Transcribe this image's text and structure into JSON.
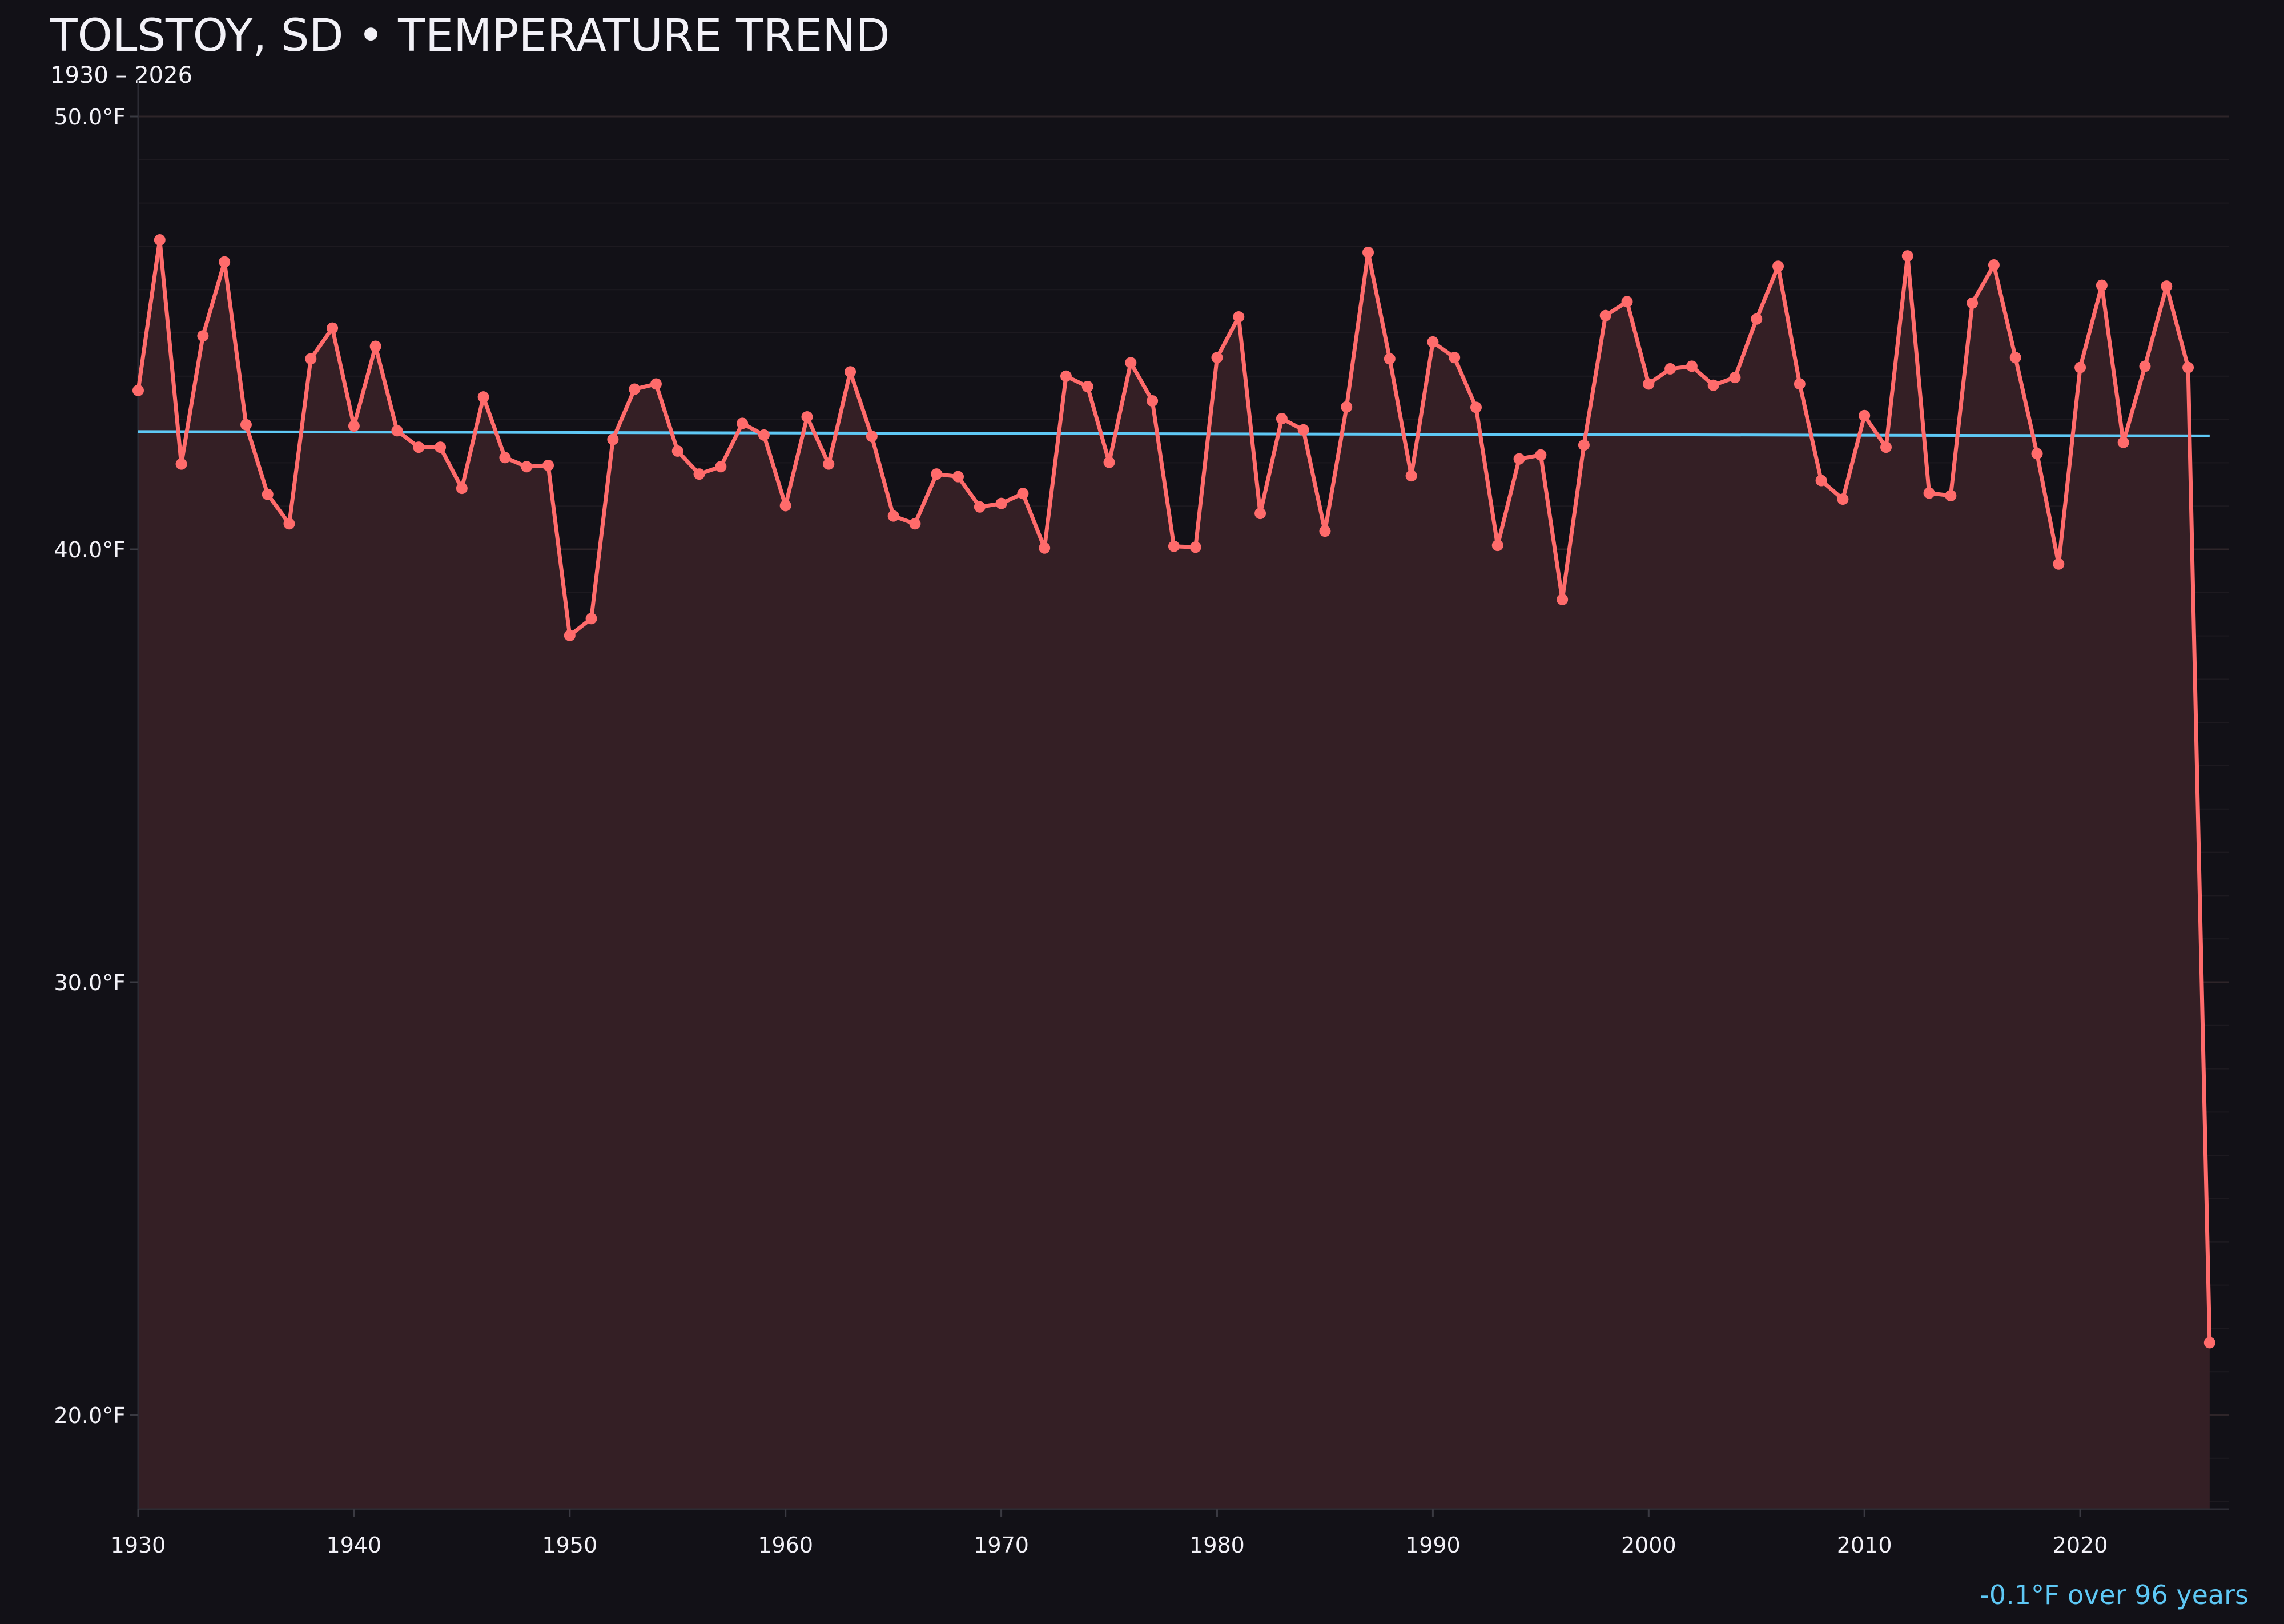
{
  "header": {
    "title": "TOLSTOY, SD • TEMPERATURE TREND",
    "subtitle": "1930 – 2026"
  },
  "footer": {
    "trend_summary": "-0.1°F over 96 years"
  },
  "colors": {
    "background": "#121117",
    "series_line": "#ff6b6b",
    "area_fill": "#341f25",
    "trend_line": "#5ec8f5",
    "text": "#f2f1f7",
    "grid": "#2a2329"
  },
  "chart_data": {
    "type": "line",
    "title": "TOLSTOY, SD • TEMPERATURE TREND",
    "subtitle": "1930 – 2026",
    "xlabel": "",
    "ylabel": "",
    "xlim": [
      1930,
      2027
    ],
    "ylim": [
      17.8,
      50.9
    ],
    "grid": true,
    "area_fill": true,
    "x_ticks": [
      1930,
      1940,
      1950,
      1960,
      1970,
      1980,
      1990,
      2000,
      2010,
      2020
    ],
    "x_tick_labels": [
      "1930",
      "1940",
      "1950",
      "1960",
      "1970",
      "1980",
      "1990",
      "2000",
      "2010",
      "2020"
    ],
    "y_ticks": [
      20,
      30,
      40,
      50
    ],
    "y_tick_labels": [
      "20.0°F",
      "30.0°F",
      "40.0°F",
      "50.0°F"
    ],
    "x": [
      1930,
      1931,
      1932,
      1933,
      1934,
      1935,
      1936,
      1937,
      1938,
      1939,
      1940,
      1941,
      1942,
      1943,
      1944,
      1945,
      1946,
      1947,
      1948,
      1949,
      1950,
      1951,
      1952,
      1953,
      1954,
      1955,
      1956,
      1957,
      1958,
      1959,
      1960,
      1961,
      1962,
      1963,
      1964,
      1965,
      1966,
      1967,
      1968,
      1969,
      1970,
      1971,
      1972,
      1973,
      1974,
      1975,
      1976,
      1977,
      1978,
      1979,
      1980,
      1981,
      1982,
      1983,
      1984,
      1985,
      1986,
      1987,
      1988,
      1989,
      1990,
      1991,
      1992,
      1993,
      1994,
      1995,
      1996,
      1997,
      1998,
      1999,
      2000,
      2001,
      2002,
      2003,
      2004,
      2005,
      2006,
      2007,
      2008,
      2009,
      2010,
      2011,
      2012,
      2013,
      2014,
      2015,
      2016,
      2017,
      2018,
      2019,
      2020,
      2021,
      2022,
      2023,
      2024,
      2025,
      2026
    ],
    "series": [
      {
        "values": [
          43.67,
          47.15,
          41.97,
          44.93,
          46.64,
          42.88,
          41.27,
          40.59,
          44.4,
          45.11,
          42.85,
          44.69,
          42.74,
          42.36,
          42.36,
          41.41,
          43.52,
          42.12,
          41.91,
          41.94,
          38.01,
          38.4,
          42.54,
          43.7,
          43.82,
          42.27,
          41.74,
          41.91,
          42.91,
          42.64,
          41.01,
          43.06,
          41.97,
          44.1,
          42.61,
          40.77,
          40.59,
          41.74,
          41.68,
          40.98,
          41.06,
          41.29,
          40.03,
          44.0,
          43.76,
          42.01,
          44.31,
          43.43,
          40.07,
          40.05,
          44.43,
          45.37,
          40.83,
          43.02,
          42.76,
          40.42,
          43.29,
          46.86,
          44.4,
          41.7,
          44.79,
          44.43,
          43.28,
          40.09,
          42.09,
          42.18,
          38.84,
          42.41,
          45.4,
          45.72,
          43.82,
          44.17,
          44.23,
          43.79,
          43.97,
          45.32,
          46.54,
          43.82,
          41.59,
          41.16,
          43.09,
          42.36,
          46.78,
          41.3,
          41.24,
          45.69,
          46.57,
          44.43,
          42.21,
          39.66,
          44.2,
          46.1,
          42.47,
          44.23,
          46.08,
          44.2,
          21.67
        ]
      }
    ],
    "trend": {
      "x": [
        1930,
        2026
      ],
      "y": [
        42.72,
        42.62
      ],
      "label": "-0.1°F over 96 years"
    }
  }
}
